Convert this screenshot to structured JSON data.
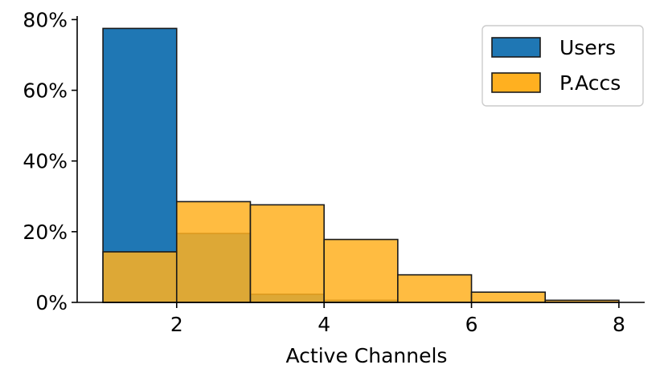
{
  "chart_data": {
    "type": "bar",
    "subtype": "overlapping-histogram",
    "xlabel": "Active Channels",
    "ylabel": "",
    "xlim": [
      0.65,
      8.35
    ],
    "ylim": [
      0,
      81
    ],
    "x_ticks": [
      2,
      4,
      6,
      8
    ],
    "y_ticks": [
      0,
      20,
      40,
      60,
      80
    ],
    "y_tick_format": "percent",
    "grid": false,
    "legend_position": "top-right",
    "bins": [
      [
        1,
        2
      ],
      [
        2,
        3
      ],
      [
        3,
        4
      ],
      [
        4,
        5
      ],
      [
        5,
        6
      ],
      [
        6,
        7
      ],
      [
        7,
        8
      ]
    ],
    "series": [
      {
        "name": "Users",
        "color": "#1f77b4",
        "values": [
          77.5,
          19.5,
          2.3,
          0.6,
          0.0,
          0.0,
          0.0
        ]
      },
      {
        "name": "P.Accs",
        "color": "#ffb020",
        "values": [
          14.3,
          28.5,
          27.6,
          17.8,
          7.8,
          2.9,
          0.6
        ]
      }
    ]
  }
}
